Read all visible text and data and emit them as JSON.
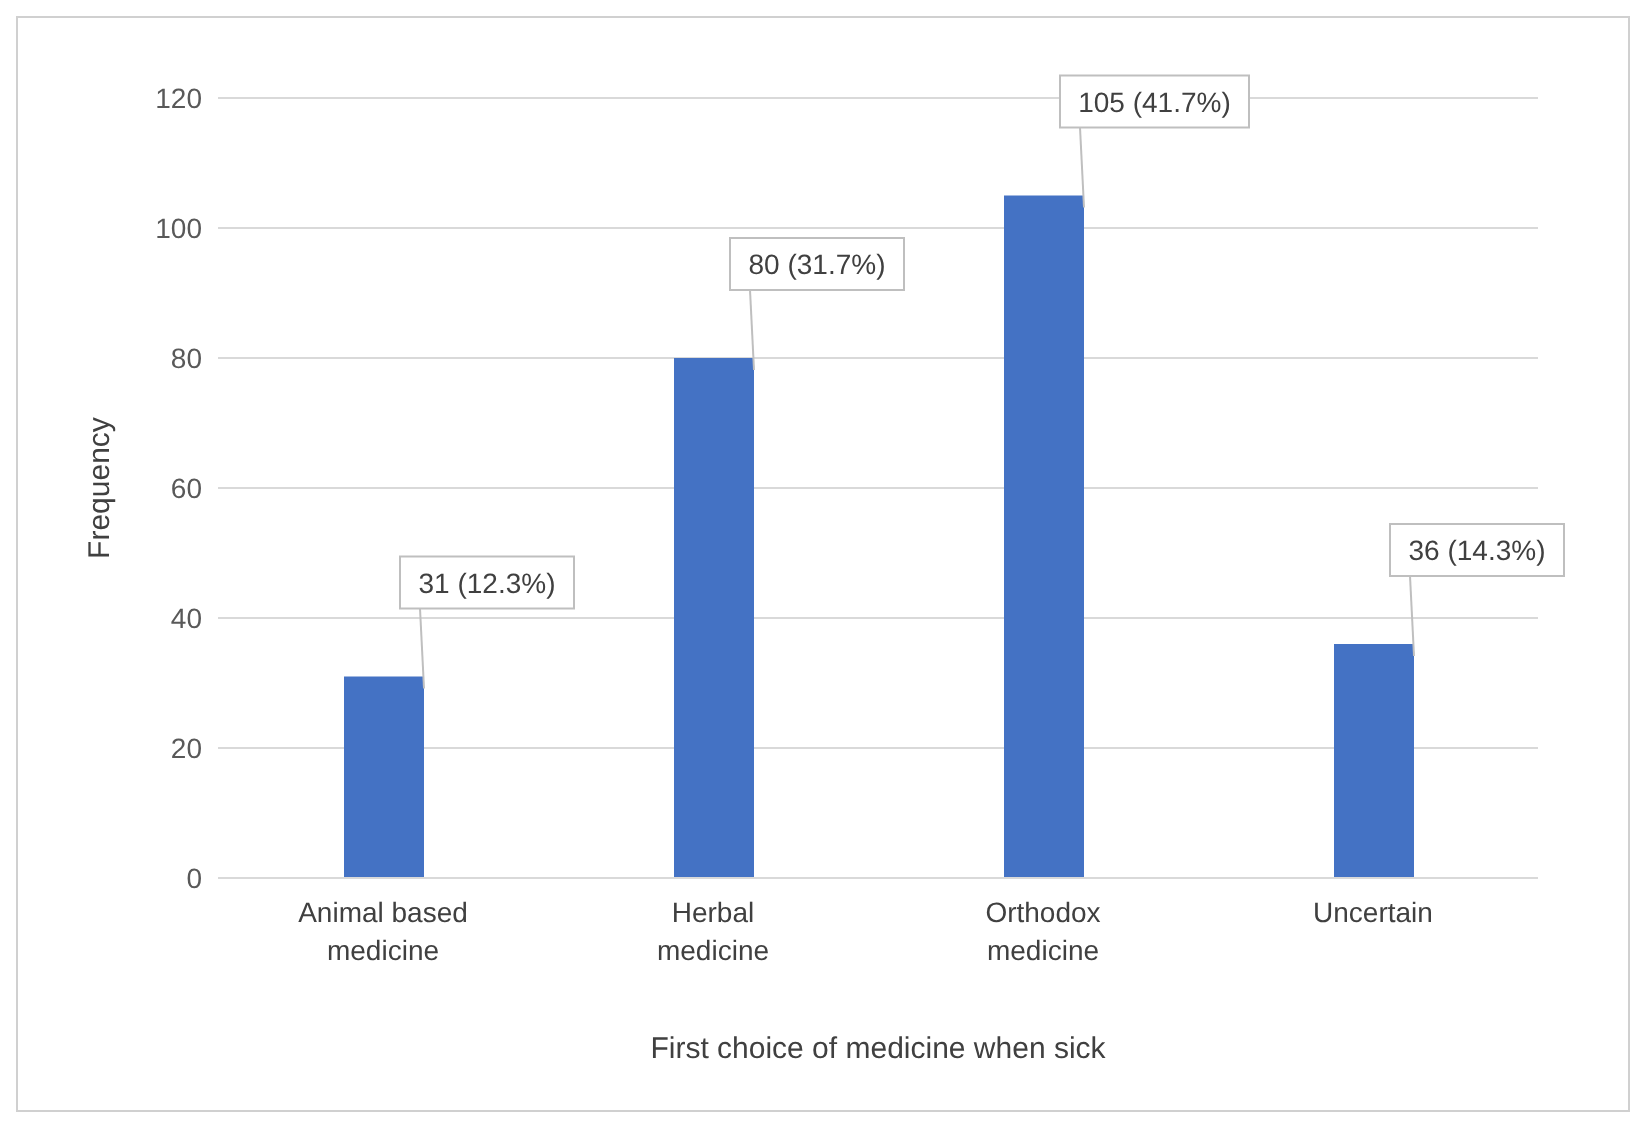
{
  "chart_data": {
    "type": "bar",
    "xlabel": "First choice of medicine when  sick",
    "ylabel": "Frequency",
    "categories": [
      "Animal based medicine",
      "Herbal medicine",
      "Orthodox medicine",
      "Uncertain"
    ],
    "values": [
      31,
      80,
      105,
      36
    ],
    "value_labels": [
      "31 (12.3%)",
      "80 (31.7%)",
      "105 (41.7%)",
      "36 (14.3%)"
    ],
    "color": "#4472c4",
    "ylim": [
      0,
      120
    ],
    "yticks": [
      0,
      20,
      40,
      60,
      80,
      100,
      120
    ],
    "grid": "y",
    "legend": false
  }
}
